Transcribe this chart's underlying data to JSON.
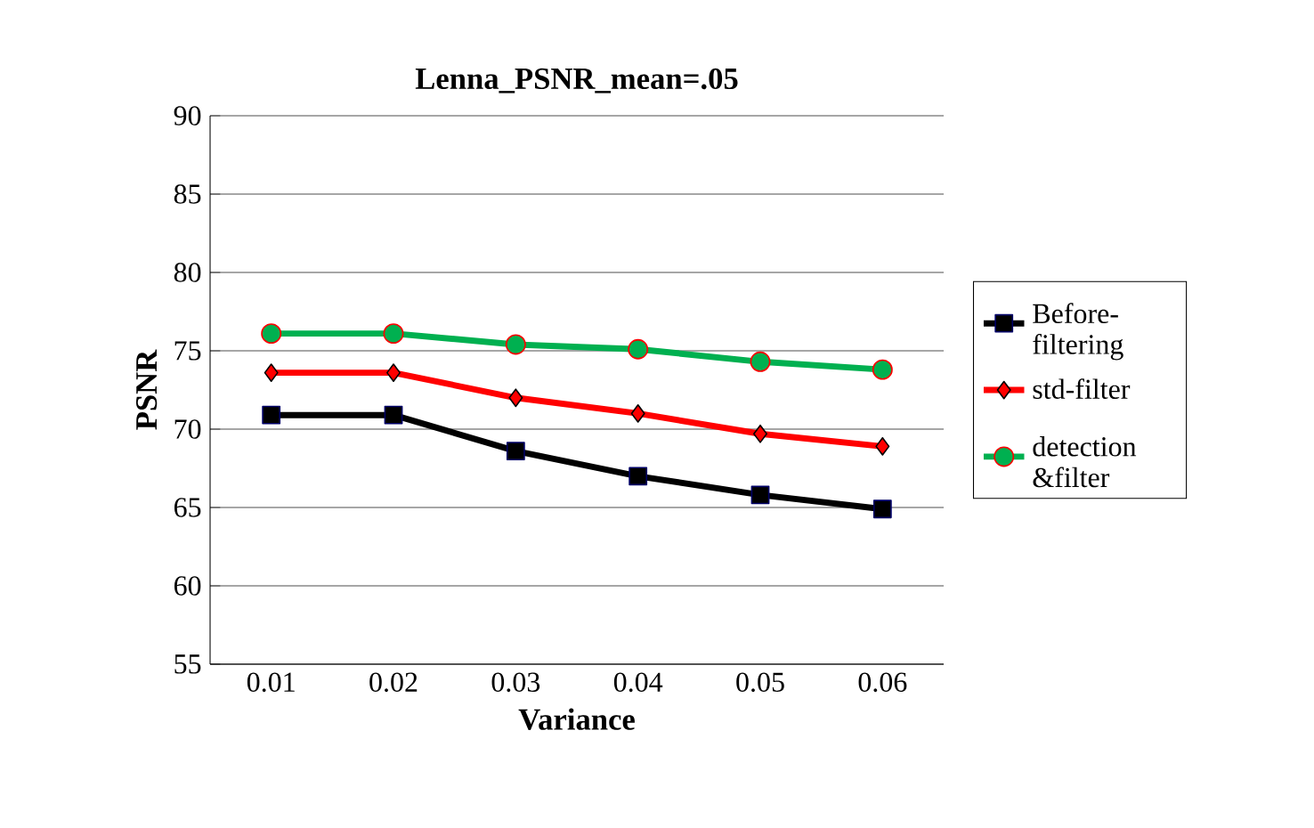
{
  "chart_data": {
    "type": "line",
    "title": "Lenna_PSNR_mean=.05",
    "xlabel": "Variance",
    "ylabel": "PSNR",
    "categories": [
      "0.01",
      "0.02",
      "0.03",
      "0.04",
      "0.05",
      "0.06"
    ],
    "ylim": [
      55,
      90
    ],
    "yticks": [
      55,
      60,
      65,
      70,
      75,
      80,
      85,
      90
    ],
    "grid": "y",
    "legend": "right",
    "series": [
      {
        "name": "Before-filtering",
        "color": "#000000",
        "marker": "square",
        "values": [
          70.9,
          70.9,
          68.6,
          67.0,
          65.8,
          64.9
        ]
      },
      {
        "name": "std-filter",
        "color": "#ff0000",
        "marker": "diamond",
        "values": [
          73.6,
          73.6,
          72.0,
          71.0,
          69.7,
          68.9
        ]
      },
      {
        "name": "detection &filter",
        "color": "#00b050",
        "marker": "circle",
        "values": [
          76.1,
          76.1,
          75.4,
          75.1,
          74.3,
          73.8
        ]
      }
    ]
  }
}
